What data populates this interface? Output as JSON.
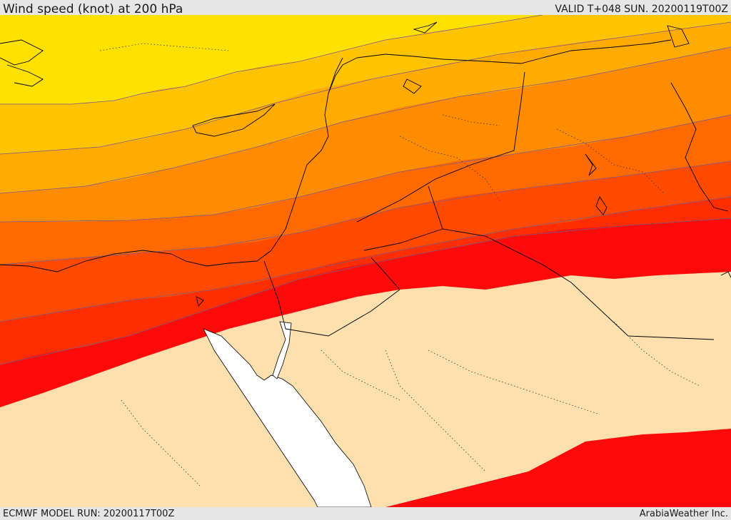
{
  "header": {
    "title": "Wind speed (knot) at 200 hPa",
    "valid_time": "VALID T+048 SUN. 20200119T00Z"
  },
  "footer": {
    "model_run": "ECMWF MODEL RUN: 20200117T00Z",
    "credit": "ArabiaWeather Inc."
  },
  "map": {
    "colors": {
      "background_land": "#fde0ae",
      "sea": "#ffffff",
      "band_1": "#ffe100",
      "band_2": "#ffc300",
      "band_3": "#ffab00",
      "band_4": "#ff8c00",
      "band_5": "#ff6a00",
      "band_6": "#ff4a00",
      "band_7": "#ff2d00",
      "band_8": "#ff0a0a",
      "contour_line": "#7a5a8a",
      "coastline": "#000000"
    }
  }
}
